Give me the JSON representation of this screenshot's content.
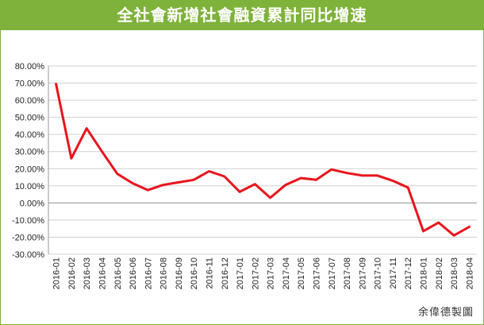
{
  "title": "全社會新增社會融資累計同比增速",
  "credit": "余偉德製圖",
  "colors": {
    "header": "#7fb23a",
    "line": "#e8141c",
    "grid": "#cfcfcf",
    "text": "#222222"
  },
  "chart_data": {
    "type": "line",
    "title": "全社會新增社會融資累計同比增速",
    "xlabel": "",
    "ylabel": "",
    "ylim": [
      -30,
      80
    ],
    "ytick_step": 10,
    "ytick_format": "percent_2dp",
    "grid": true,
    "legend": "none",
    "categories": [
      "2016-01",
      "2016-02",
      "2016-03",
      "2016-04",
      "2016-05",
      "2016-06",
      "2016-07",
      "2016-08",
      "2016-09",
      "2016-10",
      "2016-11",
      "2016-12",
      "2017-01",
      "2017-02",
      "2017-03",
      "2017-04",
      "2017-05",
      "2017-06",
      "2017-07",
      "2017-08",
      "2017-09",
      "2017-10",
      "2017-11",
      "2017-12",
      "2018-01",
      "2018-02",
      "2018-03",
      "2018-04"
    ],
    "series": [
      {
        "name": "",
        "values": [
          69.5,
          26,
          43.5,
          30,
          17,
          11.5,
          7.5,
          10.5,
          12,
          13.5,
          18.5,
          15.5,
          6.5,
          11,
          3,
          10.5,
          14.5,
          13.5,
          19.5,
          17.5,
          16,
          16,
          13,
          9,
          -16.5,
          -11.5,
          -19,
          -14
        ]
      }
    ]
  }
}
